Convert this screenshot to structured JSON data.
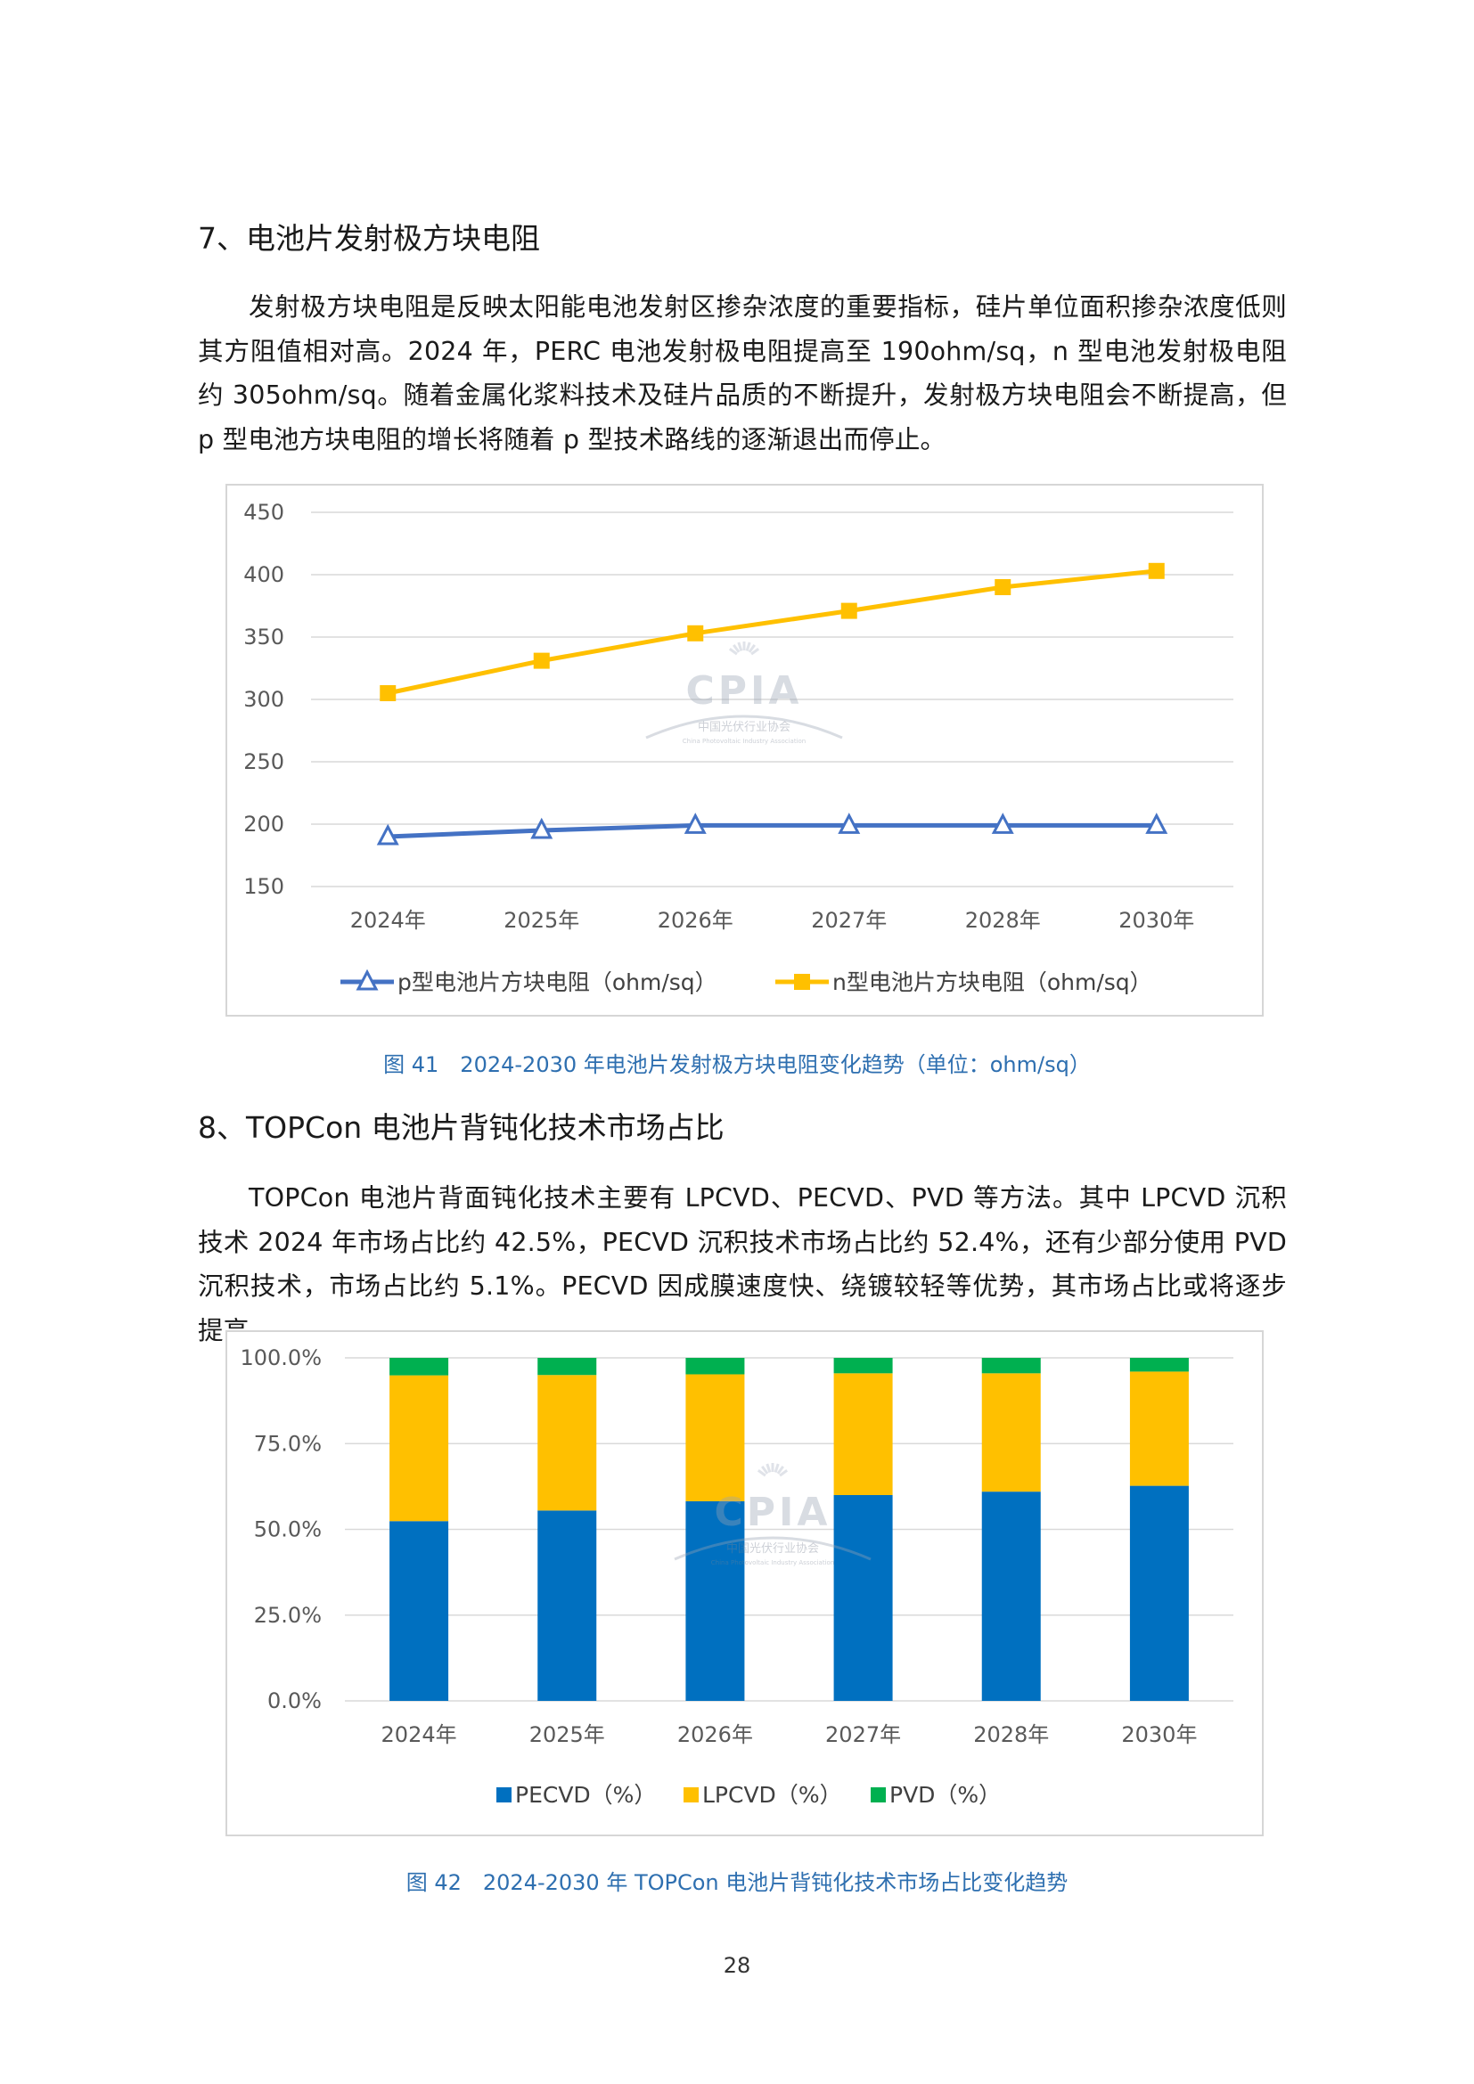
{
  "section7": {
    "heading": "7、电池片发射极方块电阻",
    "paragraph": "发射极方块电阻是反映太阳能电池发射区掺杂浓度的重要指标，硅片单位面积掺杂浓度低则其方阻值相对高。2024 年，PERC 电池发射极电阻提高至 190ohm/sq，n 型电池发射极电阻约 305ohm/sq。随着金属化浆料技术及硅片品质的不断提升，发射极方块电阻会不断提高，但 p 型电池方块电阻的增长将随着 p 型技术路线的逐渐退出而停止。",
    "caption": "图 41　2024-2030 年电池片发射极方块电阻变化趋势（单位：ohm/sq）"
  },
  "section8": {
    "heading": "8、TOPCon 电池片背钝化技术市场占比",
    "paragraph": "TOPCon 电池片背面钝化技术主要有 LPCVD、PECVD、PVD 等方法。其中 LPCVD 沉积技术 2024 年市场占比约 42.5%，PECVD 沉积技术市场占比约 52.4%，还有少部分使用 PVD 沉积技术，市场占比约 5.1%。PECVD 因成膜速度快、绕镀较轻等优势，其市场占比或将逐步提高。",
    "caption": "图 42　2024-2030 年 TOPCon 电池片背钝化技术市场占比变化趋势"
  },
  "watermark": {
    "logo_text": "CPIA",
    "name_cn": "中国光伏行业协会",
    "name_en": "China Photovoltaic Industry Association"
  },
  "page_number": "28",
  "chart_data": [
    {
      "type": "line",
      "title": "",
      "xlabel": "",
      "ylabel": "",
      "categories": [
        "2024年",
        "2025年",
        "2026年",
        "2027年",
        "2028年",
        "2030年"
      ],
      "ylim": [
        150,
        450
      ],
      "yticks": [
        "450",
        "400",
        "350",
        "300",
        "250",
        "200",
        "150"
      ],
      "grid": true,
      "legend_position": "bottom",
      "series": [
        {
          "name": "p型电池片方块电阻（ohm/sq）",
          "values": [
            190,
            195,
            199,
            199,
            199,
            199
          ],
          "color": "#4472c4",
          "marker": "triangle-open"
        },
        {
          "name": "n型电池片方块电阻（ohm/sq）",
          "values": [
            305,
            331,
            353,
            371,
            390,
            403
          ],
          "color": "#ffc000",
          "marker": "square"
        }
      ]
    },
    {
      "type": "bar",
      "stacked": true,
      "title": "",
      "xlabel": "",
      "ylabel": "",
      "categories": [
        "2024年",
        "2025年",
        "2026年",
        "2027年",
        "2028年",
        "2030年"
      ],
      "ylim": [
        0,
        100
      ],
      "yticks": [
        "100.0%",
        "75.0%",
        "50.0%",
        "25.0%",
        "0.0%"
      ],
      "grid": true,
      "legend_position": "bottom",
      "series": [
        {
          "name": "PECVD（%）",
          "values": [
            52.4,
            55.5,
            58.2,
            60.0,
            61.0,
            62.7
          ],
          "color": "#0070c0"
        },
        {
          "name": "LPCVD（%）",
          "values": [
            42.5,
            39.5,
            37.0,
            35.5,
            34.5,
            33.3
          ],
          "color": "#ffc000"
        },
        {
          "name": "PVD（%）",
          "values": [
            5.1,
            5.0,
            4.8,
            4.5,
            4.5,
            4.0
          ],
          "color": "#00b050"
        }
      ]
    }
  ]
}
